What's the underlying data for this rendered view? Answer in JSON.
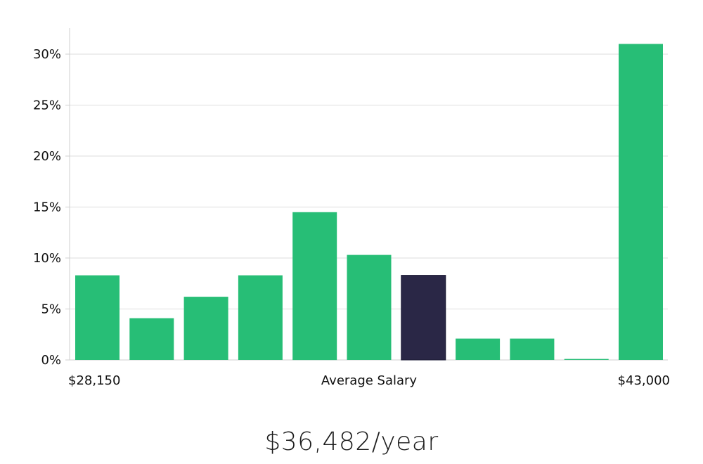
{
  "chart_data": {
    "type": "bar",
    "title": "",
    "xlabel": "Average Salary",
    "ylabel": "",
    "x_start_label": "$28,150",
    "x_end_label": "$43,000",
    "ylim": [
      0,
      32
    ],
    "yticks": [
      0,
      5,
      10,
      15,
      20,
      25,
      30
    ],
    "ytick_labels": [
      "0%",
      "5%",
      "10%",
      "15%",
      "20%",
      "25%",
      "30%"
    ],
    "grid": true,
    "values": [
      8.3,
      4.1,
      6.2,
      8.3,
      14.5,
      10.3,
      8.3,
      2.1,
      2.1,
      0.1,
      31.0
    ],
    "highlight_index": 6,
    "colors": {
      "bar": "#27be76",
      "highlight": "#2a2746",
      "grid": "#dedede",
      "axis": "#cfcfcf"
    }
  },
  "summary": {
    "average_salary": "$36,482/year"
  }
}
